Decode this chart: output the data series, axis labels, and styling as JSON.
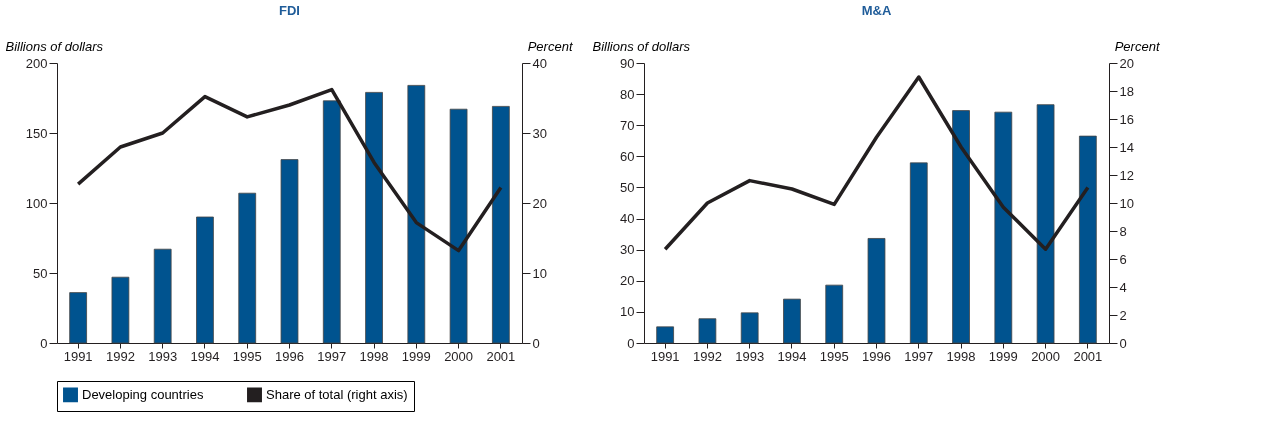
{
  "chart_data": [
    {
      "type": "bar",
      "title": "FDI",
      "ylabel": "Billions of dollars",
      "y2label": "Percent",
      "categories": [
        "1991",
        "1992",
        "1993",
        "1994",
        "1995",
        "1996",
        "1997",
        "1998",
        "1999",
        "2000",
        "2001"
      ],
      "series": [
        {
          "name": "Developing countries",
          "color": "#00538f",
          "values": [
            36,
            47,
            67,
            90,
            107,
            131,
            173,
            179,
            184,
            167,
            169
          ]
        },
        {
          "name": "Share of total (right axis)",
          "type": "line",
          "axis": "y2",
          "color": "#231f20",
          "values": [
            22.7,
            28,
            30,
            35.2,
            32.3,
            34,
            36.2,
            25.8,
            17.2,
            13.2,
            22.2
          ]
        }
      ],
      "ylim": [
        0,
        200
      ],
      "yticks": [
        0,
        50,
        100,
        150,
        200
      ],
      "y2lim": [
        0,
        40
      ],
      "y2ticks": [
        0,
        10,
        20,
        30,
        40
      ],
      "grid": false,
      "legend": "bottom"
    },
    {
      "type": "bar",
      "title": "M&A",
      "ylabel": "Billions of dollars",
      "y2label": "Percent",
      "categories": [
        "1991",
        "1992",
        "1993",
        "1994",
        "1995",
        "1996",
        "1997",
        "1998",
        "1999",
        "2000",
        "2001"
      ],
      "series": [
        {
          "name": "Developing countries",
          "color": "#00538f",
          "values": [
            5.2,
            7.8,
            9.7,
            14.1,
            18.6,
            33.6,
            57.9,
            74.7,
            74.2,
            76.6,
            66.5
          ]
        },
        {
          "name": "Share of total (right axis)",
          "type": "line",
          "axis": "y2",
          "color": "#231f20",
          "values": [
            6.7,
            10,
            11.6,
            11,
            9.9,
            14.7,
            19,
            14,
            9.7,
            6.7,
            11.1
          ]
        }
      ],
      "ylim": [
        0,
        90
      ],
      "yticks": [
        0,
        10,
        20,
        30,
        40,
        50,
        60,
        70,
        80,
        90
      ],
      "y2lim": [
        0,
        20
      ],
      "y2ticks": [
        0,
        2,
        4,
        6,
        8,
        10,
        12,
        14,
        16,
        18,
        20
      ],
      "grid": false,
      "legend": "bottom"
    }
  ]
}
